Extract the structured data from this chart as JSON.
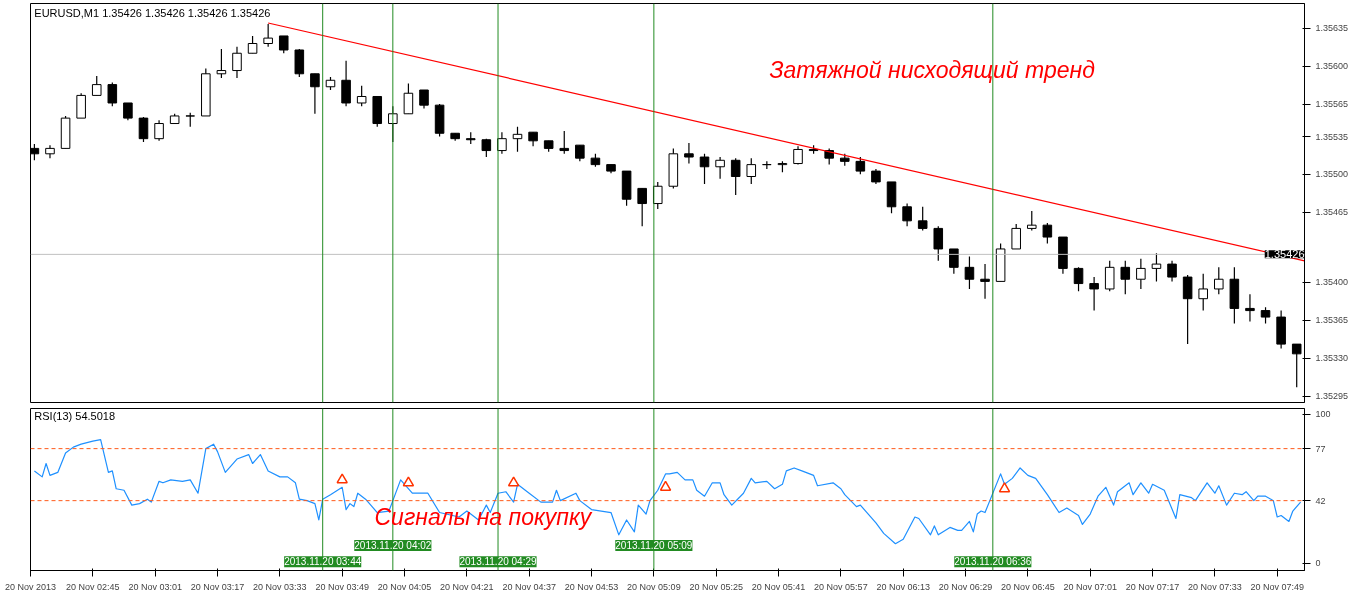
{
  "chart_data": [
    {
      "type": "candlestick",
      "title": "EURUSD,M1 1.35426 1.35426 1.35426 1.35426",
      "annotations": [
        "Затяжной нисходящий тренд"
      ],
      "grid": false,
      "tick_labels": "y",
      "xlim": [
        "2013-11-20T02:29",
        "2013-11-20T07:56"
      ],
      "ylim": [
        1.35289,
        1.35658
      ],
      "yticks": [
        {
          "value": 1.35295,
          "label": "1.35295"
        },
        {
          "value": 1.3533,
          "label": "1.35330"
        },
        {
          "value": 1.35365,
          "label": "1.35365"
        },
        {
          "value": 1.354,
          "label": "1.35400"
        },
        {
          "value": 1.35465,
          "label": "1.35465"
        },
        {
          "value": 1.355,
          "label": "1.35500"
        },
        {
          "value": 1.35535,
          "label": "1.35535"
        },
        {
          "value": 1.35565,
          "label": "1.35565"
        },
        {
          "value": 1.356,
          "label": "1.35600"
        },
        {
          "value": 1.35635,
          "label": "1.35635"
        }
      ],
      "color": "#000000",
      "x": [
        "2013-11-20T02:30",
        "2013-11-20T02:34",
        "2013-11-20T02:38",
        "2013-11-20T02:42",
        "2013-11-20T02:46",
        "2013-11-20T02:50",
        "2013-11-20T02:54",
        "2013-11-20T02:58",
        "2013-11-20T03:02",
        "2013-11-20T03:06",
        "2013-11-20T03:10",
        "2013-11-20T03:14",
        "2013-11-20T03:18",
        "2013-11-20T03:22",
        "2013-11-20T03:26",
        "2013-11-20T03:30",
        "2013-11-20T03:34",
        "2013-11-20T03:38",
        "2013-11-20T03:42",
        "2013-11-20T03:46",
        "2013-11-20T03:50",
        "2013-11-20T03:54",
        "2013-11-20T03:58",
        "2013-11-20T04:02",
        "2013-11-20T04:06",
        "2013-11-20T04:10",
        "2013-11-20T04:14",
        "2013-11-20T04:18",
        "2013-11-20T04:22",
        "2013-11-20T04:26",
        "2013-11-20T04:30",
        "2013-11-20T04:34",
        "2013-11-20T04:38",
        "2013-11-20T04:42",
        "2013-11-20T04:46",
        "2013-11-20T04:50",
        "2013-11-20T04:54",
        "2013-11-20T04:58",
        "2013-11-20T05:02",
        "2013-11-20T05:06",
        "2013-11-20T05:10",
        "2013-11-20T05:14",
        "2013-11-20T05:18",
        "2013-11-20T05:22",
        "2013-11-20T05:26",
        "2013-11-20T05:30",
        "2013-11-20T05:34",
        "2013-11-20T05:38",
        "2013-11-20T05:42",
        "2013-11-20T05:46",
        "2013-11-20T05:50",
        "2013-11-20T05:54",
        "2013-11-20T05:58",
        "2013-11-20T06:02",
        "2013-11-20T06:06",
        "2013-11-20T06:10",
        "2013-11-20T06:14",
        "2013-11-20T06:18",
        "2013-11-20T06:22",
        "2013-11-20T06:26",
        "2013-11-20T06:30",
        "2013-11-20T06:34",
        "2013-11-20T06:38",
        "2013-11-20T06:42",
        "2013-11-20T06:46",
        "2013-11-20T06:50",
        "2013-11-20T06:54",
        "2013-11-20T06:58",
        "2013-11-20T07:02",
        "2013-11-20T07:06",
        "2013-11-20T07:10",
        "2013-11-20T07:14",
        "2013-11-20T07:18",
        "2013-11-20T07:22",
        "2013-11-20T07:26",
        "2013-11-20T07:30",
        "2013-11-20T07:34",
        "2013-11-20T07:38",
        "2013-11-20T07:42",
        "2013-11-20T07:46",
        "2013-11-20T07:50",
        "2013-11-20T07:54"
      ],
      "ohlc": [
        [
          1.35524,
          1.35528,
          1.35513,
          1.35519
        ],
        [
          1.35519,
          1.35527,
          1.35515,
          1.35524
        ],
        [
          1.35524,
          1.35554,
          1.35524,
          1.35552
        ],
        [
          1.35552,
          1.35575,
          1.35552,
          1.35573
        ],
        [
          1.35573,
          1.35591,
          1.35573,
          1.35583
        ],
        [
          1.35583,
          1.35585,
          1.35563,
          1.35566
        ],
        [
          1.35566,
          1.35566,
          1.3555,
          1.35552
        ],
        [
          1.35552,
          1.35553,
          1.3553,
          1.35533
        ],
        [
          1.35533,
          1.3555,
          1.35531,
          1.35547
        ],
        [
          1.35547,
          1.35556,
          1.35547,
          1.35554
        ],
        [
          1.35554,
          1.35557,
          1.35544,
          1.35554
        ],
        [
          1.35554,
          1.35598,
          1.35554,
          1.35593
        ],
        [
          1.35593,
          1.35616,
          1.35589,
          1.35596
        ],
        [
          1.35596,
          1.35618,
          1.35589,
          1.35612
        ],
        [
          1.35612,
          1.35628,
          1.35612,
          1.35621
        ],
        [
          1.35621,
          1.35639,
          1.35618,
          1.35626
        ],
        [
          1.35628,
          1.35628,
          1.35612,
          1.35615
        ],
        [
          1.35615,
          1.35616,
          1.3559,
          1.35593
        ],
        [
          1.35593,
          1.35593,
          1.35556,
          1.35581
        ],
        [
          1.35581,
          1.3559,
          1.35578,
          1.35587
        ],
        [
          1.35587,
          1.35605,
          1.35563,
          1.35566
        ],
        [
          1.35566,
          1.35582,
          1.35563,
          1.35572
        ],
        [
          1.35572,
          1.35572,
          1.35544,
          1.35547
        ],
        [
          1.35547,
          1.35563,
          1.3553,
          1.35556
        ],
        [
          1.35556,
          1.35584,
          1.35556,
          1.35575
        ],
        [
          1.35578,
          1.35578,
          1.35561,
          1.35564
        ],
        [
          1.35564,
          1.35565,
          1.35535,
          1.35538
        ],
        [
          1.35538,
          1.35538,
          1.35531,
          1.35533
        ],
        [
          1.35533,
          1.35539,
          1.35528,
          1.35532
        ],
        [
          1.35532,
          1.35533,
          1.35516,
          1.35522
        ],
        [
          1.35522,
          1.35539,
          1.35519,
          1.35533
        ],
        [
          1.35533,
          1.35544,
          1.35521,
          1.35537
        ],
        [
          1.35539,
          1.35539,
          1.35526,
          1.35531
        ],
        [
          1.35531,
          1.35531,
          1.35521,
          1.35524
        ],
        [
          1.35524,
          1.3554,
          1.35519,
          1.35522
        ],
        [
          1.35527,
          1.35527,
          1.35512,
          1.35515
        ],
        [
          1.35515,
          1.35519,
          1.35507,
          1.35509
        ],
        [
          1.35509,
          1.35509,
          1.35501,
          1.35503
        ],
        [
          1.35503,
          1.35503,
          1.35471,
          1.35477
        ],
        [
          1.35487,
          1.35487,
          1.35452,
          1.35473
        ],
        [
          1.35473,
          1.35493,
          1.35468,
          1.35489
        ],
        [
          1.35489,
          1.35524,
          1.35487,
          1.35519
        ],
        [
          1.35519,
          1.35529,
          1.3551,
          1.35516
        ],
        [
          1.35516,
          1.35519,
          1.35491,
          1.35507
        ],
        [
          1.35507,
          1.35516,
          1.35496,
          1.35513
        ],
        [
          1.35513,
          1.35515,
          1.35481,
          1.35498
        ],
        [
          1.35498,
          1.35515,
          1.35491,
          1.35509
        ],
        [
          1.35509,
          1.35512,
          1.35505,
          1.35509
        ],
        [
          1.35509,
          1.35512,
          1.35502,
          1.3551
        ],
        [
          1.3551,
          1.35526,
          1.35509,
          1.35523
        ],
        [
          1.35523,
          1.35527,
          1.35519,
          1.35522
        ],
        [
          1.35522,
          1.35524,
          1.35509,
          1.35515
        ],
        [
          1.35515,
          1.35519,
          1.35508,
          1.35512
        ],
        [
          1.35512,
          1.35516,
          1.355,
          1.35503
        ],
        [
          1.35503,
          1.35505,
          1.35491,
          1.35493
        ],
        [
          1.35493,
          1.35493,
          1.35464,
          1.3547
        ],
        [
          1.3547,
          1.35473,
          1.35452,
          1.35457
        ],
        [
          1.35457,
          1.3547,
          1.35448,
          1.3545
        ],
        [
          1.3545,
          1.35452,
          1.3542,
          1.35431
        ],
        [
          1.35431,
          1.35431,
          1.35408,
          1.35414
        ],
        [
          1.35414,
          1.35424,
          1.35394,
          1.35403
        ],
        [
          1.35403,
          1.35417,
          1.35385,
          1.35401
        ],
        [
          1.35401,
          1.35436,
          1.35401,
          1.35431
        ],
        [
          1.35431,
          1.35454,
          1.35431,
          1.3545
        ],
        [
          1.3545,
          1.35466,
          1.35448,
          1.35453
        ],
        [
          1.35453,
          1.35455,
          1.35436,
          1.35442
        ],
        [
          1.35442,
          1.35442,
          1.35408,
          1.35413
        ],
        [
          1.35413,
          1.35414,
          1.35392,
          1.35399
        ],
        [
          1.35399,
          1.35405,
          1.35374,
          1.35394
        ],
        [
          1.35394,
          1.3542,
          1.35392,
          1.35414
        ],
        [
          1.35414,
          1.3542,
          1.35389,
          1.35403
        ],
        [
          1.35403,
          1.35422,
          1.35394,
          1.35413
        ],
        [
          1.35413,
          1.35427,
          1.35401,
          1.35417
        ],
        [
          1.35417,
          1.3542,
          1.35401,
          1.35405
        ],
        [
          1.35405,
          1.35407,
          1.35343,
          1.35385
        ],
        [
          1.35385,
          1.35408,
          1.35374,
          1.35394
        ],
        [
          1.35394,
          1.35414,
          1.35389,
          1.35403
        ],
        [
          1.35403,
          1.35414,
          1.35362,
          1.35376
        ],
        [
          1.35376,
          1.35389,
          1.35364,
          1.35374
        ],
        [
          1.35374,
          1.35377,
          1.35362,
          1.35368
        ],
        [
          1.35368,
          1.35374,
          1.35339,
          1.35343
        ],
        [
          1.35343,
          1.35343,
          1.35303,
          1.35334
        ]
      ],
      "series": [
        {
          "type": "line",
          "color": "#ff0000",
          "x": [
            "2013-11-20T03:30",
            "2013-11-20T07:56"
          ],
          "values": [
            1.3564,
            1.3542
          ]
        }
      ],
      "ref_lines": [
        {
          "axis": "y",
          "value": 1.35426,
          "label": "1.35426",
          "color": "#c0c0c0"
        },
        {
          "axis": "x",
          "value": "2013-11-20T03:44",
          "color": "#228b22"
        },
        {
          "axis": "x",
          "value": "2013-11-20T04:02",
          "color": "#228b22"
        },
        {
          "axis": "x",
          "value": "2013-11-20T04:29",
          "color": "#228b22"
        },
        {
          "axis": "x",
          "value": "2013-11-20T05:09",
          "color": "#228b22"
        },
        {
          "axis": "x",
          "value": "2013-11-20T06:36",
          "color": "#228b22"
        }
      ]
    },
    {
      "type": "line",
      "title": "RSI(13) 54.5018",
      "annotations": [
        "Сигналы на покупку"
      ],
      "grid": false,
      "xlim": [
        "2013-11-20T02:29",
        "2013-11-20T07:56"
      ],
      "ylim": [
        -5,
        104
      ],
      "yticks": [
        0,
        42,
        77,
        100
      ],
      "xticks": [
        {
          "value": "2013-11-20T02:29",
          "label": "20 Nov 2013"
        },
        {
          "value": "2013-11-20T02:45",
          "label": "20 Nov 02:45"
        },
        {
          "value": "2013-11-20T03:01",
          "label": "20 Nov 03:01"
        },
        {
          "value": "2013-11-20T03:17",
          "label": "20 Nov 03:17"
        },
        {
          "value": "2013-11-20T03:33",
          "label": "20 Nov 03:33"
        },
        {
          "value": "2013-11-20T03:49",
          "label": "20 Nov 03:49"
        },
        {
          "value": "2013-11-20T04:05",
          "label": "20 Nov 04:05"
        },
        {
          "value": "2013-11-20T04:21",
          "label": "20 Nov 04:21"
        },
        {
          "value": "2013-11-20T04:37",
          "label": "20 Nov 04:37"
        },
        {
          "value": "2013-11-20T04:53",
          "label": "20 Nov 04:53"
        },
        {
          "value": "2013-11-20T05:09",
          "label": "20 Nov 05:09"
        },
        {
          "value": "2013-11-20T05:25",
          "label": "20 Nov 05:25"
        },
        {
          "value": "2013-11-20T05:41",
          "label": "20 Nov 05:41"
        },
        {
          "value": "2013-11-20T05:57",
          "label": "20 Nov 05:57"
        },
        {
          "value": "2013-11-20T06:13",
          "label": "20 Nov 06:13"
        },
        {
          "value": "2013-11-20T06:29",
          "label": "20 Nov 06:29"
        },
        {
          "value": "2013-11-20T06:45",
          "label": "20 Nov 06:45"
        },
        {
          "value": "2013-11-20T07:01",
          "label": "20 Nov 07:01"
        },
        {
          "value": "2013-11-20T07:17",
          "label": "20 Nov 07:17"
        },
        {
          "value": "2013-11-20T07:33",
          "label": "20 Nov 07:33"
        },
        {
          "value": "2013-11-20T07:49",
          "label": "20 Nov 07:49"
        }
      ],
      "series": [
        {
          "color": "#1e90ff",
          "x": [
            "2013-11-20T02:30",
            "2013-11-20T02:32",
            "2013-11-20T02:33",
            "2013-11-20T02:34",
            "2013-11-20T02:36",
            "2013-11-20T02:38",
            "2013-11-20T02:40",
            "2013-11-20T02:42",
            "2013-11-20T02:45",
            "2013-11-20T02:47",
            "2013-11-20T02:49",
            "2013-11-20T02:50",
            "2013-11-20T02:51",
            "2013-11-20T02:53",
            "2013-11-20T02:55",
            "2013-11-20T02:57",
            "2013-11-20T02:59",
            "2013-11-20T03:00",
            "2013-11-20T03:02",
            "2013-11-20T03:03",
            "2013-11-20T03:05",
            "2013-11-20T03:08",
            "2013-11-20T03:10",
            "2013-11-20T03:12",
            "2013-11-20T03:14",
            "2013-11-20T03:16",
            "2013-11-20T03:17",
            "2013-11-20T03:19",
            "2013-11-20T03:22",
            "2013-11-20T03:25",
            "2013-11-20T03:26",
            "2013-11-20T03:28",
            "2013-11-20T03:30",
            "2013-11-20T03:33",
            "2013-11-20T03:35",
            "2013-11-20T03:37",
            "2013-11-20T03:38",
            "2013-11-20T03:40",
            "2013-11-20T03:42",
            "2013-11-20T03:43",
            "2013-11-20T03:44",
            "2013-11-20T03:46",
            "2013-11-20T03:49",
            "2013-11-20T03:50",
            "2013-11-20T03:51",
            "2013-11-20T03:52",
            "2013-11-20T03:53",
            "2013-11-20T03:55",
            "2013-11-20T03:58",
            "2013-11-20T04:01",
            "2013-11-20T04:04",
            "2013-11-20T04:07",
            "2013-11-20T04:11",
            "2013-11-20T04:14",
            "2013-11-20T04:19",
            "2013-11-20T04:21",
            "2013-11-20T04:24",
            "2013-11-20T04:26",
            "2013-11-20T04:27",
            "2013-11-20T04:29",
            "2013-11-20T04:31",
            "2013-11-20T04:33",
            "2013-11-20T04:34",
            "2013-11-20T04:37",
            "2013-11-20T04:40",
            "2013-11-20T04:43",
            "2013-11-20T04:44",
            "2013-11-20T04:45",
            "2013-11-20T04:49",
            "2013-11-20T04:50",
            "2013-11-20T04:53",
            "2013-11-20T04:58",
            "2013-11-20T05:00",
            "2013-11-20T05:02",
            "2013-11-20T05:04",
            "2013-11-20T05:05",
            "2013-11-20T05:07",
            "2013-11-20T05:08",
            "2013-11-20T05:10",
            "2013-11-20T05:12",
            "2013-11-20T05:13",
            "2013-11-20T05:15",
            "2013-11-20T05:17",
            "2013-11-20T05:19",
            "2013-11-20T05:20",
            "2013-11-20T05:22",
            "2013-11-20T05:24",
            "2013-11-20T05:26",
            "2013-11-20T05:27",
            "2013-11-20T05:29",
            "2013-11-20T05:32",
            "2013-11-20T05:34",
            "2013-11-20T05:35",
            "2013-11-20T05:38",
            "2013-11-20T05:40",
            "2013-11-20T05:42",
            "2013-11-20T05:43",
            "2013-11-20T05:45",
            "2013-11-20T05:47",
            "2013-11-20T05:50",
            "2013-11-20T05:51",
            "2013-11-20T05:55",
            "2013-11-20T05:57",
            "2013-11-20T05:58",
            "2013-11-20T06:01",
            "2013-11-20T06:02",
            "2013-11-20T06:06",
            "2013-11-20T06:08",
            "2013-11-20T06:11",
            "2013-11-20T06:13",
            "2013-11-20T06:16",
            "2013-11-20T06:17",
            "2013-11-20T06:20",
            "2013-11-20T06:21",
            "2013-11-20T06:22",
            "2013-11-20T06:25",
            "2013-11-20T06:27",
            "2013-11-20T06:28",
            "2013-11-20T06:30",
            "2013-11-20T06:31",
            "2013-11-20T06:32",
            "2013-11-20T06:33",
            "2013-11-20T06:34",
            "2013-11-20T06:38",
            "2013-11-20T06:39",
            "2013-11-20T06:41",
            "2013-11-20T06:43",
            "2013-11-20T06:45",
            "2013-11-20T06:47",
            "2013-11-20T06:50",
            "2013-11-20T06:53",
            "2013-11-20T06:55",
            "2013-11-20T06:58",
            "2013-11-20T06:59",
            "2013-11-20T07:01",
            "2013-11-20T07:03",
            "2013-11-20T07:05",
            "2013-11-20T07:07",
            "2013-11-20T07:08",
            "2013-11-20T07:11",
            "2013-11-20T07:12",
            "2013-11-20T07:14",
            "2013-11-20T07:16",
            "2013-11-20T07:17",
            "2013-11-20T07:20",
            "2013-11-20T07:23",
            "2013-11-20T07:24",
            "2013-11-20T07:27",
            "2013-11-20T07:28",
            "2013-11-20T07:31",
            "2013-11-20T07:33",
            "2013-11-20T07:34",
            "2013-11-20T07:36",
            "2013-11-20T07:38",
            "2013-11-20T07:40",
            "2013-11-20T07:41",
            "2013-11-20T07:43",
            "2013-11-20T07:44",
            "2013-11-20T07:46",
            "2013-11-20T07:48",
            "2013-11-20T07:49",
            "2013-11-20T07:50",
            "2013-11-20T07:52",
            "2013-11-20T07:53",
            "2013-11-20T07:55"
          ],
          "values": [
            62,
            58,
            67,
            59,
            61,
            74,
            78,
            80,
            82,
            83,
            61,
            62,
            50,
            49,
            39,
            40,
            43,
            41,
            55,
            54,
            56,
            55,
            56,
            47,
            77,
            80,
            75,
            61,
            70,
            73,
            67,
            73,
            62,
            58,
            58,
            54,
            43,
            42,
            40,
            29,
            43,
            46,
            51,
            36,
            40,
            38,
            47,
            43,
            34,
            35,
            56,
            47,
            47,
            34,
            31,
            35,
            29,
            39,
            34,
            47,
            48,
            41,
            53,
            47,
            41,
            41,
            49,
            42,
            47,
            42,
            36,
            34,
            19,
            29,
            21,
            39,
            33,
            42,
            49,
            60,
            60,
            61,
            56,
            56,
            49,
            45,
            54,
            54,
            46,
            39,
            47,
            57,
            54,
            55,
            50,
            53,
            62,
            64,
            62,
            59,
            52,
            54,
            50,
            46,
            38,
            39,
            27,
            20,
            13,
            16,
            31,
            30,
            19,
            25,
            19,
            24,
            22,
            22,
            28,
            21,
            33,
            35,
            34,
            60,
            53,
            57,
            64,
            59,
            57,
            46,
            34,
            37,
            32,
            26,
            33,
            45,
            51,
            39,
            48,
            54,
            46,
            54,
            47,
            53,
            49,
            30,
            46,
            44,
            42,
            54,
            47,
            52,
            39,
            47,
            46,
            48,
            42,
            45,
            45,
            42,
            31,
            32,
            28,
            35,
            41
          ]
        },
        {
          "type": "scatter",
          "marker": "triangle",
          "color": "#ff3300",
          "x": [
            "2013-11-20T03:49",
            "2013-11-20T04:06",
            "2013-11-20T04:33",
            "2013-11-20T05:12",
            "2013-11-20T06:39"
          ],
          "values": [
            56,
            54,
            54,
            51,
            50
          ]
        }
      ],
      "ref_lines": [
        {
          "axis": "y",
          "value": 77,
          "color": "#ff5a1a",
          "line_style": "dashed"
        },
        {
          "axis": "y",
          "value": 42,
          "color": "#ff5a1a",
          "line_style": "dashed"
        },
        {
          "axis": "x",
          "value": "2013-11-20T03:44",
          "label": "2013.11.20 03:44",
          "color": "#228b22"
        },
        {
          "axis": "x",
          "value": "2013-11-20T04:02",
          "label": "2013.11.20 04:02",
          "color": "#228b22"
        },
        {
          "axis": "x",
          "value": "2013-11-20T04:29",
          "label": "2013.11.20 04:29",
          "color": "#228b22"
        },
        {
          "axis": "x",
          "value": "2013-11-20T05:09",
          "label": "2013.11.20 05:09",
          "color": "#228b22"
        },
        {
          "axis": "x",
          "value": "2013-11-20T06:36",
          "label": "2013.11.20 06:36",
          "color": "#228b22"
        }
      ]
    }
  ]
}
